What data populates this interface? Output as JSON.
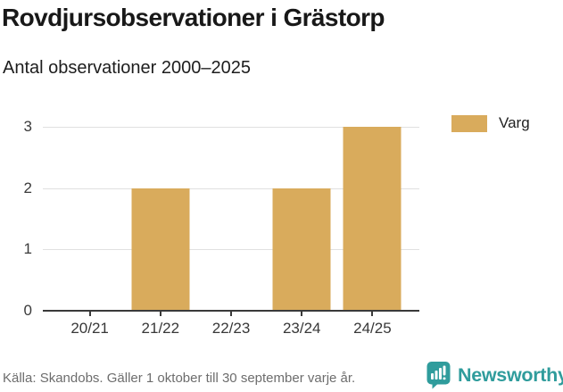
{
  "header": {
    "title": "Rovdjursobservationer i Grästorp",
    "subtitle": "Antal observationer 2000–2025"
  },
  "legend": {
    "items": [
      {
        "label": "Varg",
        "color": "#d9ab5c"
      }
    ]
  },
  "chart_data": {
    "type": "bar",
    "title": "Rovdjursobservationer i Grästorp",
    "subtitle": "Antal observationer 2000–2025",
    "categories": [
      "20/21",
      "21/22",
      "22/23",
      "23/24",
      "24/25"
    ],
    "series": [
      {
        "name": "Varg",
        "color": "#d9ab5c",
        "values": [
          0,
          2,
          0,
          2,
          3
        ]
      }
    ],
    "xlabel": "",
    "ylabel": "",
    "ylim": [
      0,
      3
    ],
    "yticks": [
      0,
      1,
      2,
      3
    ],
    "grid": true,
    "legend_position": "top-right"
  },
  "footer": {
    "source": "Källa: Skandobs. Gäller 1 oktober till 30 september varje år.",
    "brand": "Newsworthy",
    "brand_color": "#2f9c9c"
  },
  "icons": {
    "logo": "newsworthy-speech-bubble-bar-chart-icon"
  },
  "colors": {
    "bar": "#d9ab5c",
    "axis": "#3a3a3a",
    "gridline": "#e0e0e0",
    "title_text": "#181818",
    "footer_text": "#6d6d6d",
    "brand_teal": "#2f9c9c",
    "background": "#ffffff"
  }
}
